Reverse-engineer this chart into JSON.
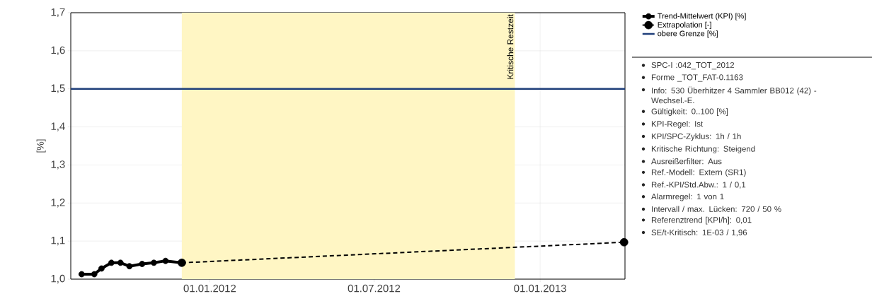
{
  "chart_data": {
    "type": "line",
    "ylabel": "[%]",
    "xlim": [
      "2011-07-31",
      "2013-04-05"
    ],
    "ylim": [
      1.0,
      1.7
    ],
    "xticks": [
      {
        "value": "2012-01-01",
        "label": "01.01.2012"
      },
      {
        "value": "2012-07-01",
        "label": "01.07.2012"
      },
      {
        "value": "2013-01-01",
        "label": "01.01.2013"
      }
    ],
    "yticks": [
      {
        "value": 1.0,
        "label": "1,0"
      },
      {
        "value": 1.1,
        "label": "1,1"
      },
      {
        "value": 1.2,
        "label": "1,2"
      },
      {
        "value": 1.3,
        "label": "1,3"
      },
      {
        "value": 1.4,
        "label": "1,4"
      },
      {
        "value": 1.5,
        "label": "1,5"
      },
      {
        "value": 1.6,
        "label": "1,6"
      },
      {
        "value": 1.7,
        "label": "1,7"
      }
    ],
    "grid": true,
    "legend": "right",
    "series": [
      {
        "name": "Trend-Mittelwert (KPI) [%]",
        "color": "#000000",
        "marker": "circle",
        "line_style": "solid",
        "x": [
          "2011-08-12",
          "2011-08-26",
          "2011-09-03",
          "2011-09-14",
          "2011-09-24",
          "2011-10-04",
          "2011-10-18",
          "2011-10-31",
          "2011-11-13",
          "2011-12-01"
        ],
        "values": [
          1.013,
          1.013,
          1.028,
          1.043,
          1.043,
          1.034,
          1.04,
          1.043,
          1.048,
          1.043
        ]
      },
      {
        "name": "Extrapolation [-]",
        "color": "#000000",
        "marker": "circle",
        "line_style": "dashed",
        "x": [
          "2011-12-01",
          "2013-04-04"
        ],
        "values": [
          1.043,
          1.097
        ]
      }
    ],
    "ref_lines": [
      {
        "axis": "y",
        "value": 1.5,
        "label": "obere Grenze [%]",
        "color": "#1f3f7a"
      }
    ],
    "bands": [
      {
        "axis": "x",
        "from": "2011-12-01",
        "to": "2012-12-04",
        "label": "Kritische Restzeit",
        "color": "#fff6c4"
      }
    ],
    "annotations": [
      "SPC-I :042_TOT_2012",
      "Forme _TOT_FAT-0.1163",
      "Info: 530 Überhitzer 4 Sammler BB012 (42) - Wechsel.-E.",
      "Gültigkeit: 0..100 [%]",
      "KPI-Regel: Ist",
      "KPI/SPC-Zyklus: 1h / 1h",
      "Kritische Richtung: Steigend",
      "Ausreißerfilter: Aus",
      "Ref.-Modell: Extern (SR1)",
      "Ref.-KPI/Std.Abw.: 1 / 0,1",
      "Alarmregel: 1 von 1",
      "Intervall / max. Lücken: 720 / 50 %",
      "Referenztrend [KPI/h]: 0,01",
      "SE/t-Kritisch: 1E-03 / 1,96"
    ]
  }
}
